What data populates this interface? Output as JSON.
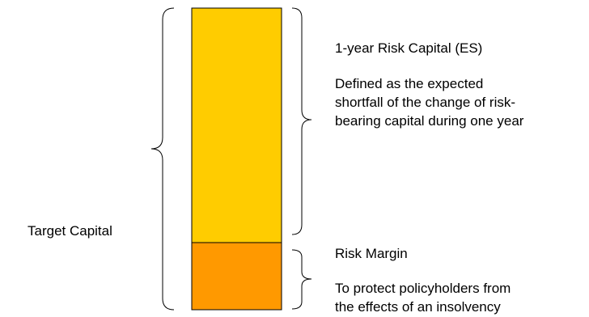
{
  "left_label": "Target Capital",
  "risk_capital": {
    "title": "1-year Risk Capital (ES)",
    "description_lines": [
      "Defined as the expected",
      "shortfall of the change of risk-",
      "bearing capital during one year"
    ],
    "color": "#FFCC00"
  },
  "risk_margin": {
    "title": "Risk Margin",
    "description_lines": [
      "To protect policyholders from",
      "the effects of an insolvency"
    ],
    "color": "#FF9900"
  }
}
